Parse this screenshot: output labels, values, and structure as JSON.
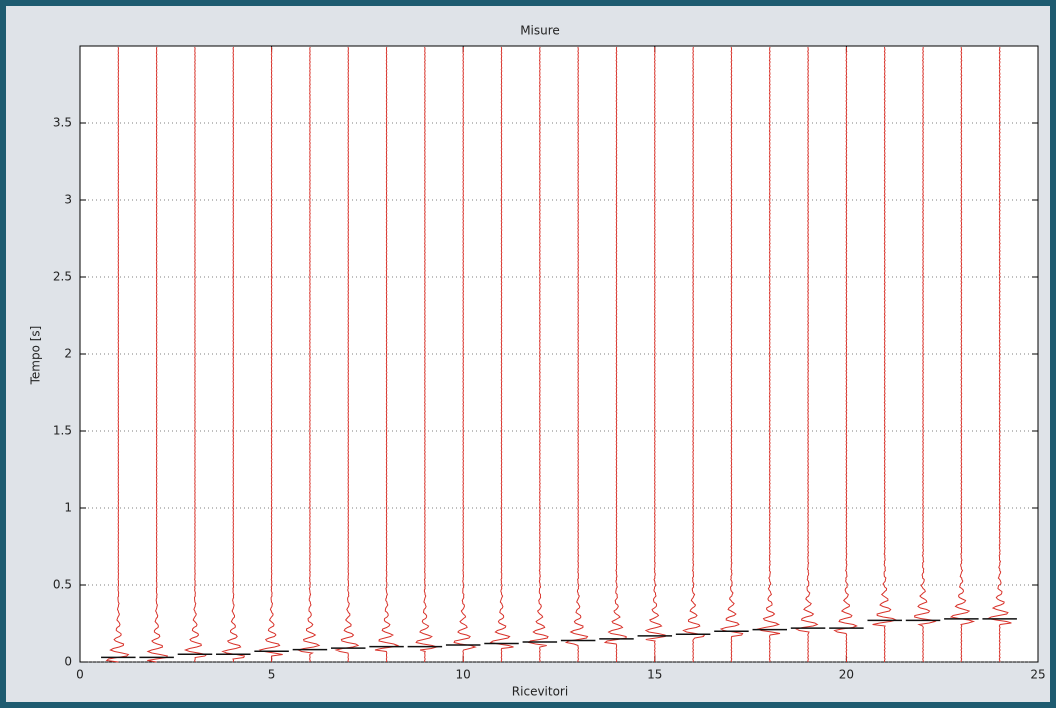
{
  "chart_data": {
    "type": "seismogram",
    "title": "Misure",
    "xlabel": "Ricevitori",
    "ylabel": "Tempo [s]",
    "x": [
      1,
      2,
      3,
      4,
      5,
      6,
      7,
      8,
      9,
      10,
      11,
      12,
      13,
      14,
      15,
      16,
      17,
      18,
      19,
      20,
      21,
      22,
      23,
      24
    ],
    "values": [
      0.03,
      0.03,
      0.05,
      0.05,
      0.07,
      0.08,
      0.09,
      0.1,
      0.1,
      0.11,
      0.12,
      0.13,
      0.14,
      0.15,
      0.17,
      0.18,
      0.2,
      0.21,
      0.22,
      0.22,
      0.27,
      0.27,
      0.28,
      0.28
    ],
    "trace_color": "#d8322a",
    "pick_color": "#111111",
    "xlim": [
      0,
      25
    ],
    "ylim": [
      0,
      4
    ],
    "xticks": [
      0,
      5,
      10,
      15,
      20,
      25
    ],
    "yticks": [
      0,
      0.5,
      1,
      1.5,
      2,
      2.5,
      3,
      3.5
    ],
    "grid": true
  }
}
